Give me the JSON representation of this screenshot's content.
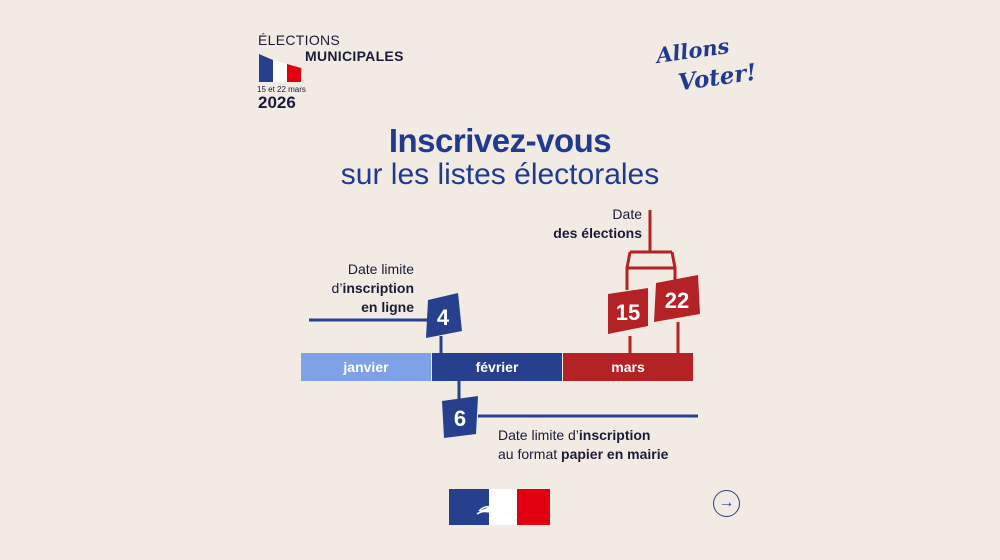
{
  "header": {
    "elections": "ÉLECTIONS",
    "municipales": "MUNICIPALES",
    "dates": "15 et 22 mars",
    "year": "2026"
  },
  "slogan": {
    "line1": "Allons",
    "line2": "Voter!"
  },
  "title": {
    "line1": "Inscrivez-vous",
    "line2": "sur les listes électorales"
  },
  "timeline": {
    "months": [
      "janvier",
      "février",
      "mars"
    ],
    "online_deadline": {
      "day": "4",
      "text_1": "Date limite",
      "text_2": "d’",
      "text_3": "inscription",
      "text_4": "en ligne"
    },
    "paper_deadline": {
      "day": "6",
      "text_1": "Date limite d’",
      "text_2": "inscription",
      "text_3": "au format ",
      "text_4": "papier en mairie"
    },
    "election": {
      "text_1": "Date",
      "text_2": "des élections",
      "round1": "15",
      "round2": "22"
    }
  },
  "colors": {
    "blue": "#27408e",
    "light_blue": "#7ea1e8",
    "red": "#b52226",
    "background": "#f2ebe4"
  },
  "footer": {
    "logo_icon": "marianne-logo",
    "next_icon": "arrow-right-icon"
  }
}
